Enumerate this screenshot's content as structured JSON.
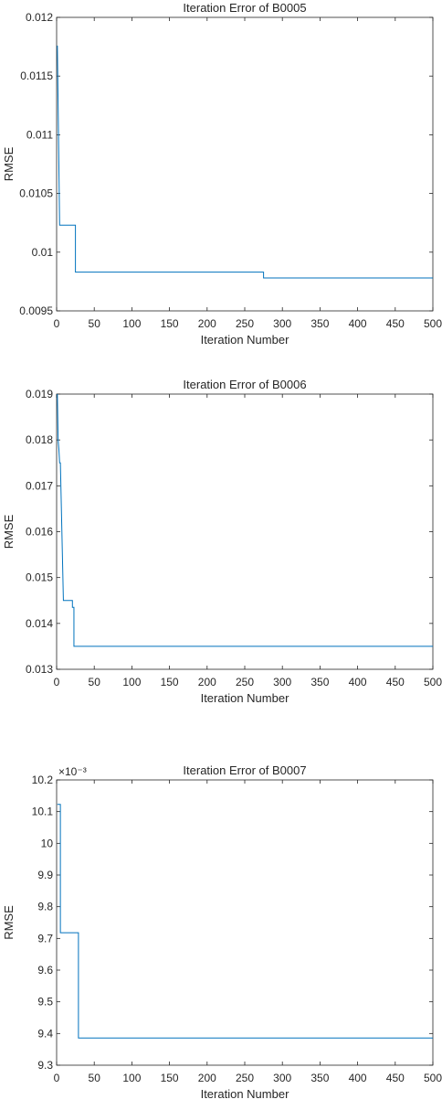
{
  "chart_data": [
    {
      "type": "line",
      "title": "Iteration Error of B0005",
      "xlabel": "Iteration Number",
      "ylabel": "RMSE",
      "xlim": [
        0,
        500
      ],
      "ylim": [
        0.0095,
        0.012
      ],
      "xticks": [
        0,
        50,
        100,
        150,
        200,
        250,
        300,
        350,
        400,
        450,
        500
      ],
      "yticks": [
        0.0095,
        0.01,
        0.0105,
        0.011,
        0.0115,
        0.012
      ],
      "ytick_labels": [
        "0.0095",
        "0.01",
        "0.0105",
        "0.011",
        "0.0115",
        "0.012"
      ],
      "exponent_label": "",
      "grid": false,
      "line_color": "#0072BD",
      "series": [
        {
          "x": [
            1,
            4,
            4,
            25,
            25,
            275,
            275,
            500
          ],
          "y": [
            0.01176,
            0.01023,
            0.01023,
            0.01023,
            0.00983,
            0.00983,
            0.00978,
            0.00978
          ]
        }
      ]
    },
    {
      "type": "line",
      "title": "Iteration Error of B0006",
      "xlabel": "Iteration Number",
      "ylabel": "RMSE",
      "xlim": [
        0,
        500
      ],
      "ylim": [
        0.013,
        0.019
      ],
      "xticks": [
        0,
        50,
        100,
        150,
        200,
        250,
        300,
        350,
        400,
        450,
        500
      ],
      "yticks": [
        0.013,
        0.014,
        0.015,
        0.016,
        0.017,
        0.018,
        0.019
      ],
      "ytick_labels": [
        "0.013",
        "0.014",
        "0.015",
        "0.016",
        "0.017",
        "0.018",
        "0.019"
      ],
      "exponent_label": "",
      "grid": false,
      "line_color": "#0072BD",
      "series": [
        {
          "x": [
            1,
            2,
            3,
            4,
            5,
            7,
            7,
            9,
            9,
            21,
            21,
            23,
            23,
            500
          ],
          "y": [
            0.019,
            0.018,
            0.0178,
            0.0175,
            0.0175,
            0.016,
            0.016,
            0.0145,
            0.0145,
            0.0145,
            0.01435,
            0.01435,
            0.0135,
            0.0135
          ]
        }
      ]
    },
    {
      "type": "line",
      "title": "Iteration Error of B0007",
      "xlabel": "Iteration Number",
      "ylabel": "RMSE",
      "xlim": [
        0,
        500
      ],
      "ylim": [
        9.3,
        10.2
      ],
      "xticks": [
        0,
        50,
        100,
        150,
        200,
        250,
        300,
        350,
        400,
        450,
        500
      ],
      "yticks": [
        9.3,
        9.4,
        9.5,
        9.6,
        9.7,
        9.8,
        9.9,
        10,
        10.1,
        10.2
      ],
      "ytick_labels": [
        "9.3",
        "9.4",
        "9.5",
        "9.6",
        "9.7",
        "9.8",
        "9.9",
        "10",
        "10.1",
        "10.2"
      ],
      "exponent_label": "×10⁻³",
      "grid": false,
      "line_color": "#0072BD",
      "series": [
        {
          "x": [
            1,
            5,
            5,
            29,
            29,
            500
          ],
          "y": [
            10.123,
            10.123,
            9.718,
            9.718,
            9.386,
            9.386
          ]
        }
      ]
    }
  ]
}
